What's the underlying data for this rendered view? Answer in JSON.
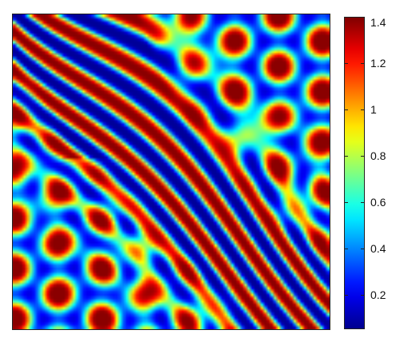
{
  "chart_data": {
    "type": "heatmap",
    "title": "",
    "xlabel": "",
    "ylabel": "",
    "value_range": [
      0.05,
      1.4
    ],
    "pattern": "mixed spots and stripes (Turing pattern)",
    "colormap": "jet",
    "colormap_stops": [
      "#00008f",
      "#0000ff",
      "#00ffff",
      "#ffff00",
      "#ff0000",
      "#800000"
    ],
    "colorbar": {
      "position": "right",
      "ticks": [
        {
          "value": 0.2,
          "label": "0.2"
        },
        {
          "value": 0.4,
          "label": "0.4"
        },
        {
          "value": 0.6,
          "label": "0.6"
        },
        {
          "value": 0.8,
          "label": "0.8"
        },
        {
          "value": 1.0,
          "label": "1"
        },
        {
          "value": 1.2,
          "label": "1.2"
        },
        {
          "value": 1.4,
          "label": "1.4"
        }
      ]
    }
  }
}
